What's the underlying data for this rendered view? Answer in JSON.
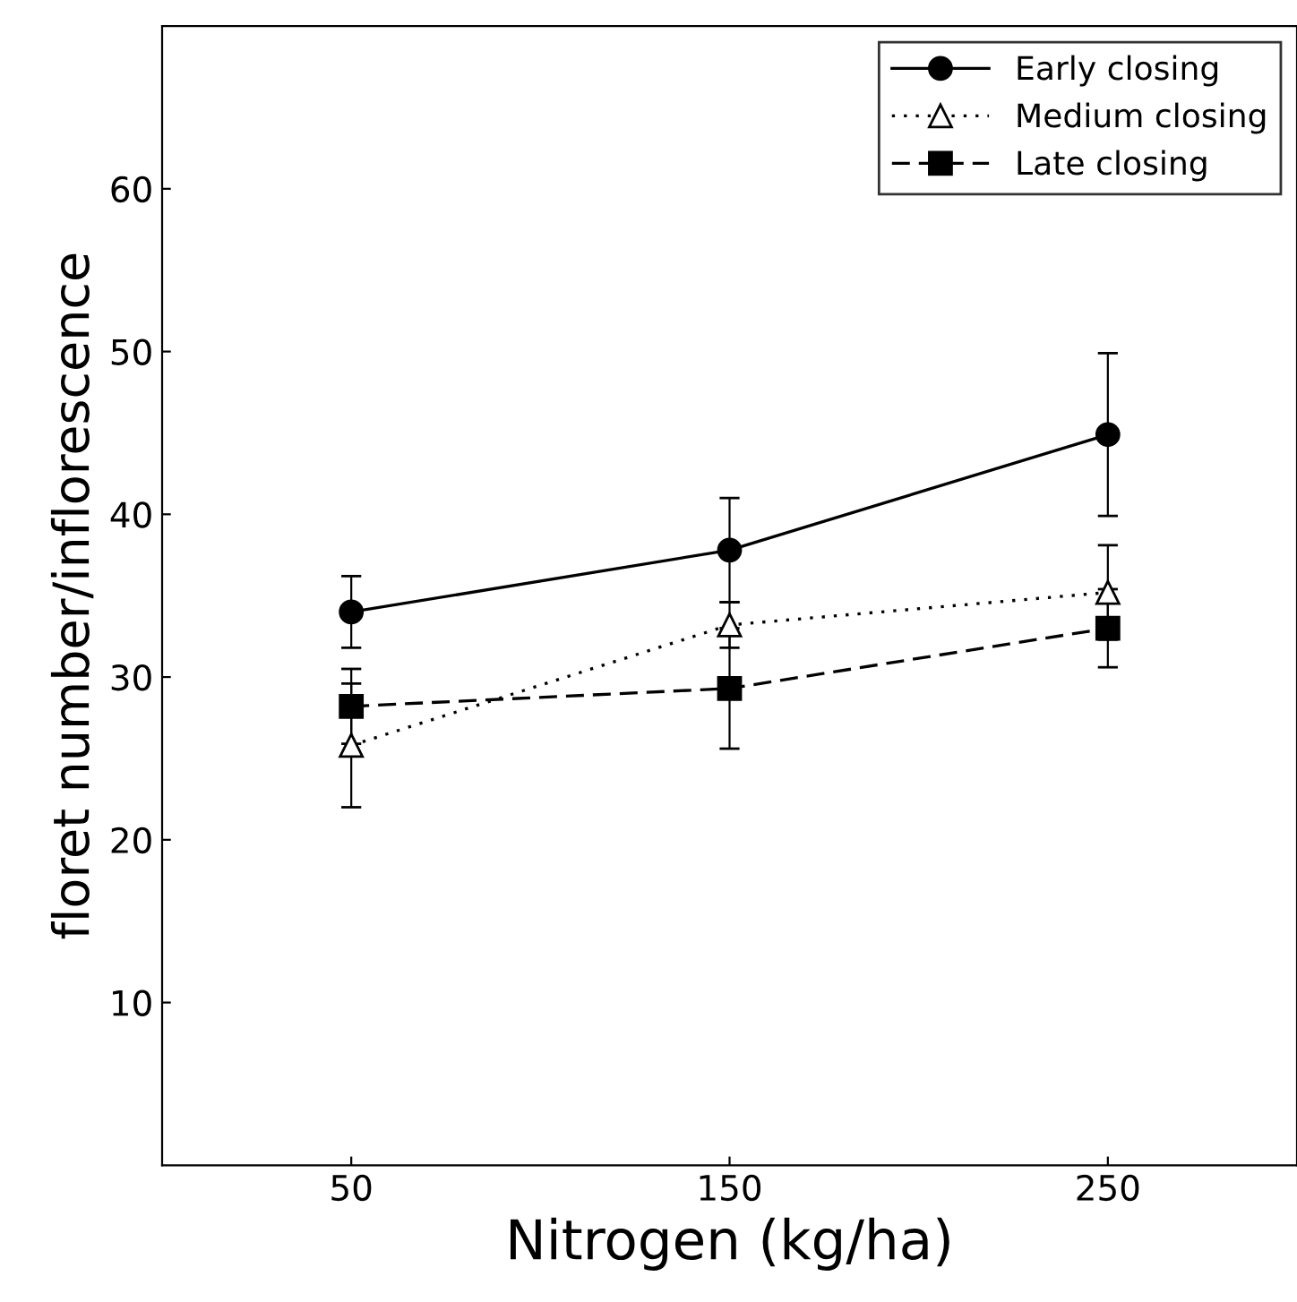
{
  "chart_data": {
    "type": "line",
    "xlabel": "Nitrogen (kg/ha)",
    "ylabel": "floret number/inflorescence",
    "x": [
      50,
      150,
      250
    ],
    "xlim": [
      0,
      300
    ],
    "xticks": [
      50,
      150,
      250
    ],
    "ylim": [
      0,
      70
    ],
    "yticks": [
      10,
      20,
      30,
      40,
      50,
      60
    ],
    "grid": false,
    "legend": "top right",
    "series": [
      {
        "name": "Early closing",
        "color": "#000000",
        "marker": "circle",
        "line_style": "solid",
        "values": [
          34.0,
          37.8,
          44.9
        ],
        "errors": [
          2.2,
          3.2,
          5.0
        ]
      },
      {
        "name": "Medium closing",
        "color": "#000000",
        "marker": "triangle",
        "line_style": "dotted",
        "values": [
          25.8,
          33.2,
          35.2
        ],
        "errors": [
          3.8,
          1.4,
          2.9
        ]
      },
      {
        "name": "Late closing",
        "color": "#000000",
        "marker": "square",
        "line_style": "dashed",
        "values": [
          28.2,
          29.3,
          33.0
        ],
        "errors": [
          2.3,
          3.7,
          2.4
        ]
      }
    ]
  }
}
